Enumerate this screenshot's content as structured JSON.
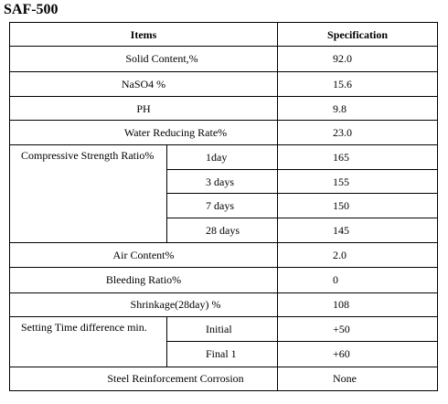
{
  "title": "SAF-500",
  "table": {
    "headers": {
      "items": "Items",
      "specification": "Specification"
    },
    "rows": {
      "solid_content": {
        "label": "Solid Content,%",
        "value": "92.0"
      },
      "naso4": {
        "label": "NaSO4 %",
        "value": "15.6"
      },
      "ph": {
        "label": "PH",
        "value": "9.8"
      },
      "water_reducing": {
        "label": "Water Reducing Rate%",
        "value": "23.0"
      },
      "compressive": {
        "label": "Compressive Strength Ratio%",
        "sub": [
          {
            "label": "1day",
            "value": "165"
          },
          {
            "label": "3 days",
            "value": "155"
          },
          {
            "label": "7 days",
            "value": "150"
          },
          {
            "label": "28 days",
            "value": "145"
          }
        ]
      },
      "air_content": {
        "label": "Air Content%",
        "value": "2.0"
      },
      "bleeding": {
        "label": "Bleeding Ratio%",
        "value": "0"
      },
      "shrinkage": {
        "label": "Shrinkage(28day) %",
        "value": "108"
      },
      "setting_time": {
        "label": "Setting Time difference min.",
        "sub": [
          {
            "label": "Initial",
            "value": "+50"
          },
          {
            "label": "Final 1",
            "value": "+60"
          }
        ]
      },
      "steel_corrosion": {
        "label": "Steel Reinforcement Corrosion",
        "value": "None"
      }
    }
  }
}
